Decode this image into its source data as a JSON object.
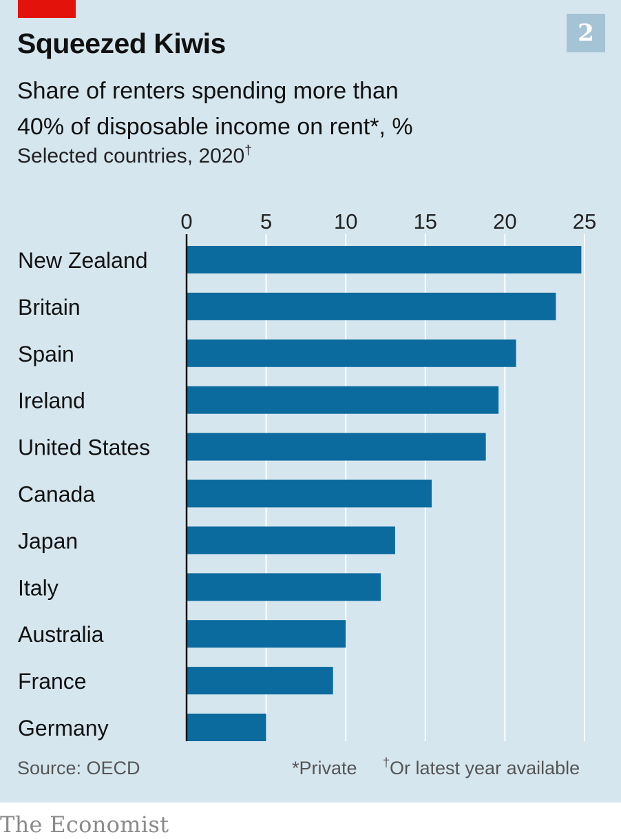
{
  "header": {
    "title": "Squeezed Kiwis",
    "chart_number": "2",
    "subtitle_line1": "Share of renters spending more than",
    "subtitle_line2": "40% of disposable income on rent*, %",
    "note_text": "Selected countries, 2020",
    "note_mark": "†"
  },
  "footer": {
    "source": "Source: OECD",
    "footnote_private": "*Private",
    "footnote_latest_mark": "†",
    "footnote_latest": "Or latest year available"
  },
  "brand": {
    "logo_text": "The Economist"
  },
  "colors": {
    "background": "#d6e6ee",
    "bar": "#0b6a9e",
    "accent_red": "#e3120b",
    "badge": "#a4c3d4",
    "grid": "#ffffff",
    "axis": "#111111"
  },
  "chart_data": {
    "type": "bar",
    "orientation": "horizontal",
    "title": "Squeezed Kiwis",
    "xlabel": "",
    "ylabel": "",
    "xlim": [
      0,
      25
    ],
    "xticks": [
      0,
      5,
      10,
      15,
      20,
      25
    ],
    "tick_labels": [
      "0",
      "5",
      "10",
      "15",
      "20",
      "25"
    ],
    "categories": [
      "New Zealand",
      "Britain",
      "Spain",
      "Ireland",
      "United States",
      "Canada",
      "Japan",
      "Italy",
      "Australia",
      "France",
      "Germany"
    ],
    "values": [
      24.8,
      23.2,
      20.7,
      19.6,
      18.8,
      15.4,
      13.1,
      12.2,
      10.0,
      9.2,
      5.0
    ],
    "grid": true,
    "axis_position": "top"
  }
}
